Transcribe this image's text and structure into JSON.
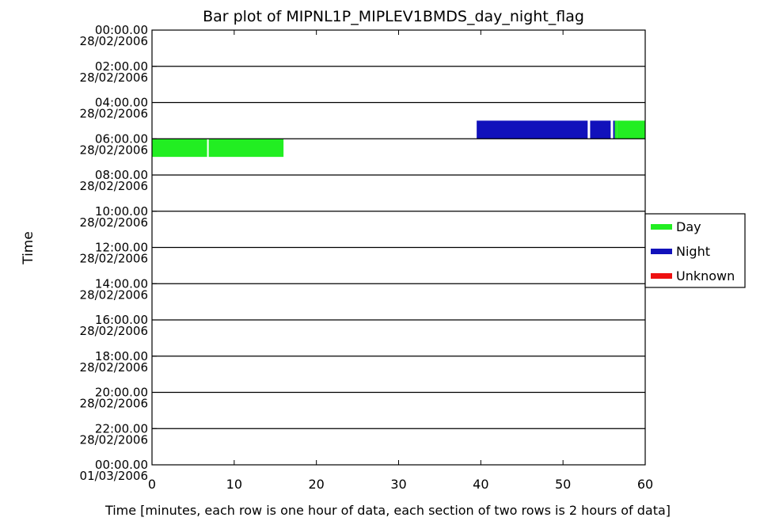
{
  "chart_data": {
    "type": "bar",
    "title": "Bar plot of MIPNL1P_MIPLEV1BMDS_day_night_flag",
    "xlabel": "Time [minutes, each row is one hour of data, each section of two rows is 2 hours of data]",
    "ylabel": "Time",
    "xlim": [
      0,
      60
    ],
    "x_ticks": [
      "0",
      "10",
      "20",
      "30",
      "40",
      "50",
      "60"
    ],
    "y_ticks": [
      {
        "time": "00:00.00",
        "date": "28/02/2006"
      },
      {
        "time": "02:00.00",
        "date": "28/02/2006"
      },
      {
        "time": "04:00.00",
        "date": "28/02/2006"
      },
      {
        "time": "06:00.00",
        "date": "28/02/2006"
      },
      {
        "time": "08:00.00",
        "date": "28/02/2006"
      },
      {
        "time": "10:00.00",
        "date": "28/02/2006"
      },
      {
        "time": "12:00.00",
        "date": "28/02/2006"
      },
      {
        "time": "14:00.00",
        "date": "28/02/2006"
      },
      {
        "time": "16:00.00",
        "date": "28/02/2006"
      },
      {
        "time": "18:00.00",
        "date": "28/02/2006"
      },
      {
        "time": "20:00.00",
        "date": "28/02/2006"
      },
      {
        "time": "22:00.00",
        "date": "28/02/2006"
      },
      {
        "time": "00:00.00",
        "date": "01/03/2006"
      }
    ],
    "legend": [
      {
        "name": "Day",
        "color": "#22ee22"
      },
      {
        "name": "Night",
        "color": "#1111bb"
      },
      {
        "name": "Unknown",
        "color": "#ee1111"
      }
    ],
    "legend_position": "right",
    "grid": "horizontal section lines every 2 hours",
    "segments": [
      {
        "hour": 5,
        "start_min": 39.5,
        "end_min": 53.0,
        "flag": "Night"
      },
      {
        "hour": 5,
        "start_min": 53.3,
        "end_min": 55.8,
        "flag": "Night"
      },
      {
        "hour": 5,
        "start_min": 56.1,
        "end_min": 56.3,
        "flag": "Night"
      },
      {
        "hour": 5,
        "start_min": 56.3,
        "end_min": 56.6,
        "flag": "Day"
      },
      {
        "hour": 5,
        "start_min": 56.6,
        "end_min": 60.0,
        "flag": "Day"
      },
      {
        "hour": 6,
        "start_min": 0.0,
        "end_min": 6.7,
        "flag": "Day"
      },
      {
        "hour": 6,
        "start_min": 6.9,
        "end_min": 16.0,
        "flag": "Day"
      }
    ]
  }
}
